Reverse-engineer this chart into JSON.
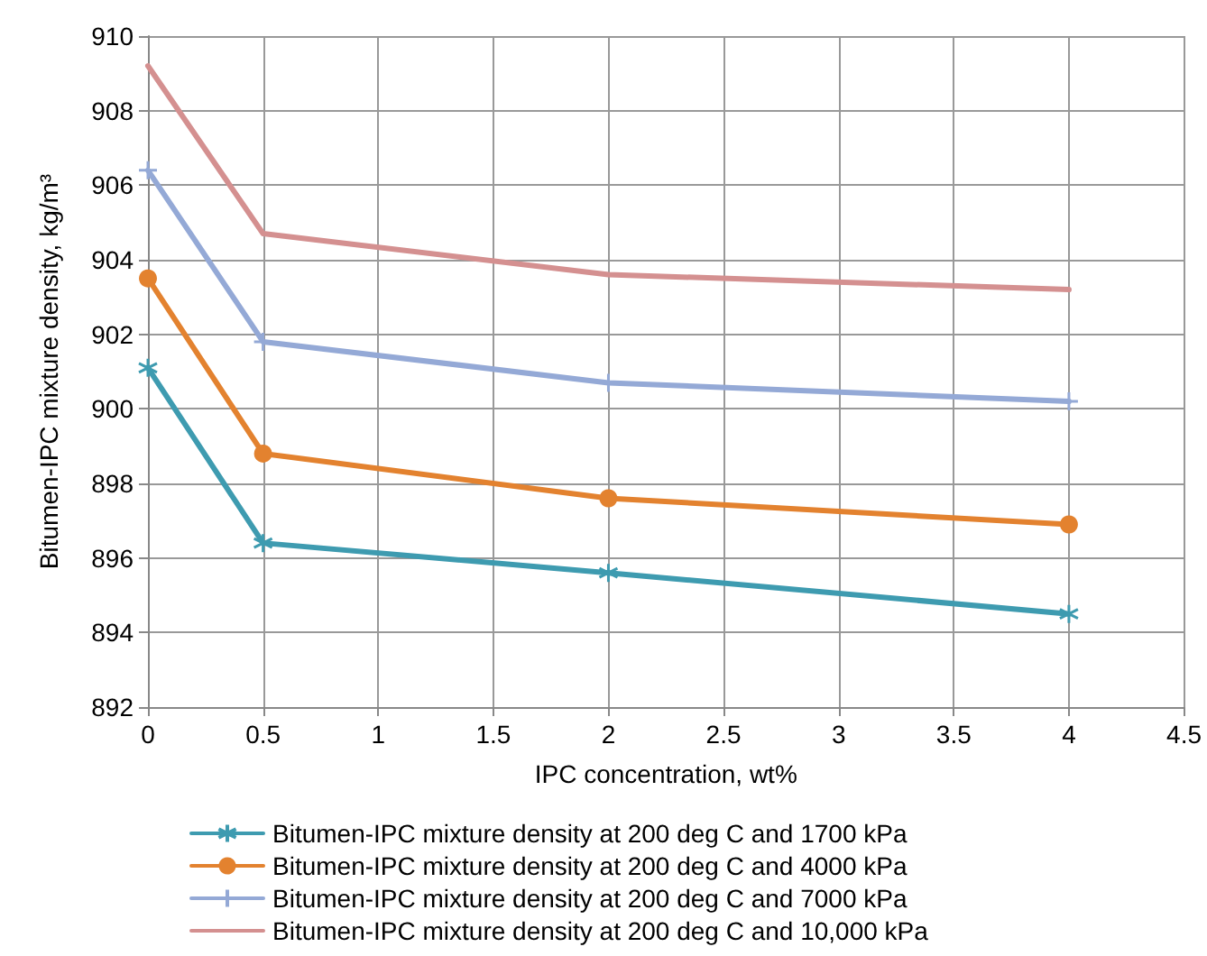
{
  "chart_data": {
    "type": "line",
    "xlabel": "IPC concentration, wt%",
    "ylabel": "Bitumen-IPC mixture density, kg/m³",
    "x": [
      0,
      0.5,
      2,
      4
    ],
    "series": [
      {
        "name": "Bitumen-IPC mixture density at 200 deg C and 1700 kPa",
        "color": "#3e9bb0",
        "marker": "cross",
        "values": [
          901.1,
          896.4,
          895.6,
          894.5
        ]
      },
      {
        "name": "Bitumen-IPC mixture density at 200 deg C and 4000 kPa",
        "color": "#e3822f",
        "marker": "circle",
        "values": [
          903.5,
          898.8,
          897.6,
          896.9
        ]
      },
      {
        "name": "Bitumen-IPC mixture density at 200 deg C and 7000 kPa",
        "color": "#94a9d6",
        "marker": "cross",
        "values": [
          906.4,
          901.8,
          900.7,
          900.2
        ]
      },
      {
        "name": "Bitumen-IPC mixture density at 200 deg C and 10,000 kPa",
        "color": "#d49090",
        "marker": "none",
        "values": [
          909.2,
          904.7,
          903.6,
          903.2
        ]
      }
    ],
    "xlim": [
      0,
      4.5
    ],
    "xticks": [
      0,
      0.5,
      1,
      1.5,
      2,
      2.5,
      3,
      3.5,
      4,
      4.5
    ],
    "ylim": [
      892,
      910
    ],
    "yticks": [
      892,
      894,
      896,
      898,
      900,
      902,
      904,
      906,
      908,
      910
    ],
    "grid": true,
    "legend": "bottom",
    "line_style": "solid"
  }
}
